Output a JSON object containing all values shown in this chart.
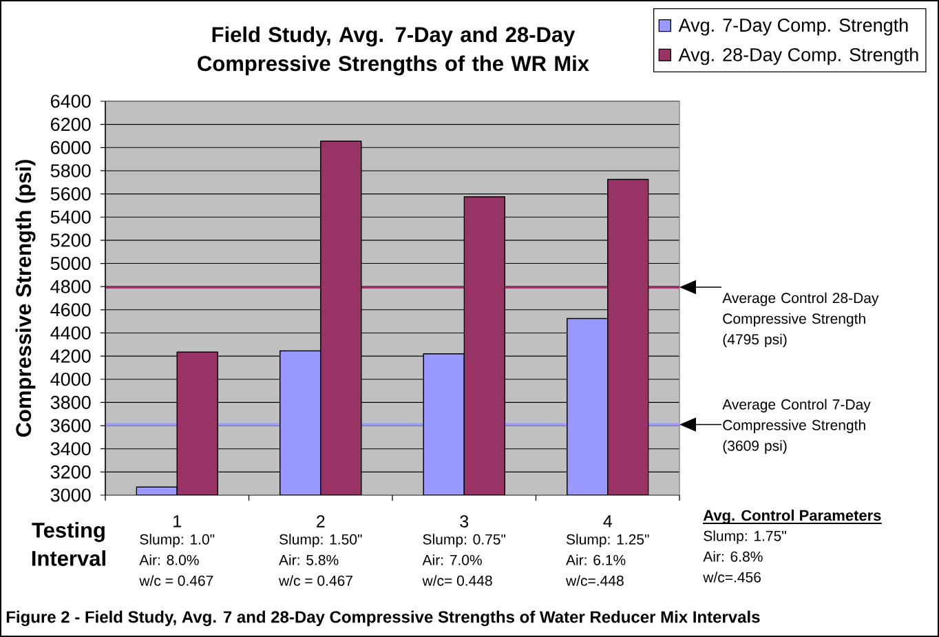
{
  "chart_data": {
    "type": "bar",
    "title": "Field Study, Avg. 7-Day and 28-Day Compressive Strengths of the WR Mix",
    "xlabel": "Testing Interval",
    "ylabel": "Compressive Strength (psi)",
    "categories": [
      "1",
      "2",
      "3",
      "4"
    ],
    "series": [
      {
        "name": "Avg. 7-Day Comp. Strength",
        "color": "#9999ff",
        "values": [
          3070,
          4245,
          4220,
          4525
        ]
      },
      {
        "name": "Avg. 28-Day Comp. Strength",
        "color": "#993366",
        "values": [
          4235,
          6055,
          5575,
          5725
        ]
      }
    ],
    "ylim": [
      3000,
      6400
    ],
    "yticks": [
      3000,
      3200,
      3400,
      3600,
      3800,
      4000,
      4200,
      4400,
      4600,
      4800,
      5000,
      5200,
      5400,
      5600,
      5800,
      6000,
      6200,
      6400
    ],
    "grid": "y",
    "legend": "top right",
    "ref_lines": [
      {
        "axis": "y",
        "value": 4795,
        "label": "Average Control 28-Day Compressive Strength (4795 psi)",
        "color": "#993366"
      },
      {
        "axis": "y",
        "value": 3609,
        "label": "Average Control 7-Day Compressive Strength (3609 psi)",
        "color": "#9999ff"
      }
    ],
    "annotations": [
      "Slump: 1.0\"",
      "Air: 8.0%",
      "w/c = 0.467",
      "Slump: 1.50\"",
      "Air: 5.8%",
      "w/c = 0.467",
      "Slump: 0.75\"",
      "Air: 7.0%",
      "w/c= 0.448",
      "Slump: 1.25\"",
      "Air: 6.1%",
      "w/c=.448",
      "Avg. Control Parameters",
      "Slump: 1.75\"",
      "Air: 6.8%",
      "w/c=.456",
      "Figure 2 - Field Study, Avg. 7 and 28-Day Compressive Strengths of Water Reducer Mix Intervals"
    ]
  }
}
